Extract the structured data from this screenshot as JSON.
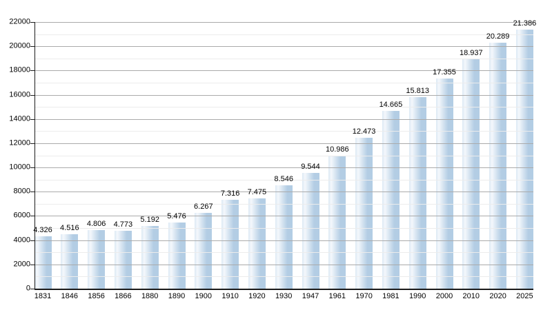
{
  "chart_data": {
    "type": "bar",
    "title": "",
    "xlabel": "",
    "ylabel": "",
    "categories": [
      "1831",
      "1846",
      "1856",
      "1866",
      "1880",
      "1890",
      "1900",
      "1910",
      "1920",
      "1930",
      "1947",
      "1961",
      "1970",
      "1981",
      "1990",
      "2000",
      "2010",
      "2020",
      "2025"
    ],
    "values": [
      4326,
      4516,
      4806,
      4773,
      5192,
      5476,
      6267,
      7316,
      7475,
      8546,
      9544,
      10986,
      12473,
      14665,
      15813,
      17355,
      18937,
      20289,
      21386
    ],
    "value_labels": [
      "4.326",
      "4.516",
      "4.806",
      "4.773",
      "5.192",
      "5.476",
      "6.267",
      "7.316",
      "7.475",
      "8.546",
      "9.544",
      "10.986",
      "12.473",
      "14.665",
      "15.813",
      "17.355",
      "18.937",
      "20.289",
      "21.386"
    ],
    "ylim": [
      0,
      22000
    ],
    "ytick_step": 2000,
    "y_minor_step": 1000,
    "y_tick_labels": [
      "0",
      "2000",
      "4000",
      "6000",
      "8000",
      "10000",
      "12000",
      "14000",
      "16000",
      "18000",
      "20000",
      "22000"
    ],
    "grid": "horizontal, major and minor lines drawn over bars",
    "legend": "none",
    "colors": {
      "bar": "#b3cde4",
      "bar_highlight": "#f4f8fc",
      "bar_edge_tint": "#dce9f4",
      "grid_major": "#aaaaaa",
      "grid_minor": "#ececec",
      "axis": "#1a1a1a",
      "background": "#ffffff",
      "text": "#000000"
    }
  }
}
